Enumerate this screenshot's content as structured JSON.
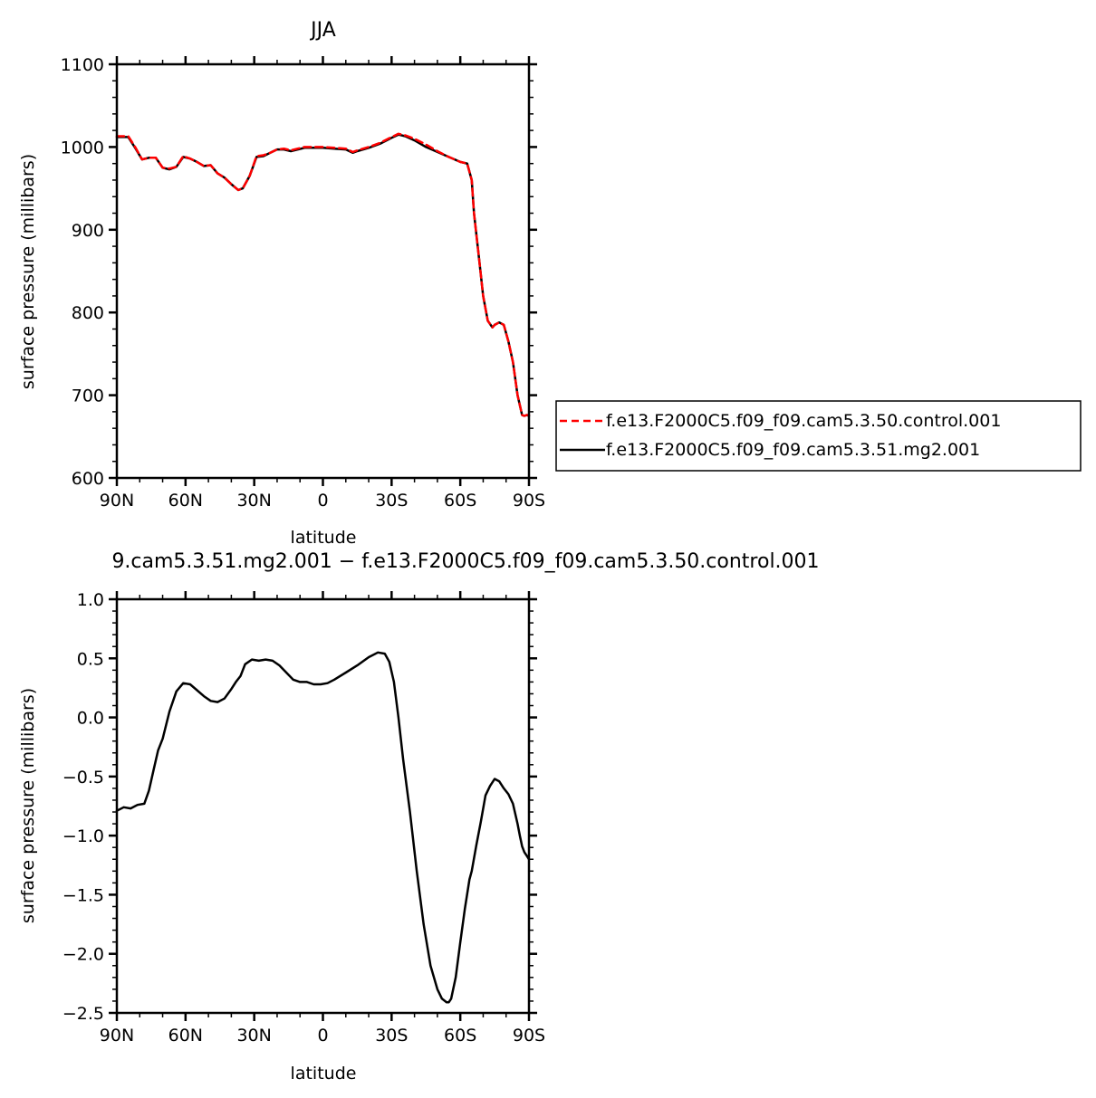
{
  "chart_data": [
    {
      "type": "line",
      "title": "JJA",
      "xlabel": "latitude",
      "ylabel": "surface pressure (millibars)",
      "xlim": [
        90,
        -90
      ],
      "ylim": [
        600,
        1100
      ],
      "xtick_labels": [
        "90N",
        "60N",
        "30N",
        "0",
        "30S",
        "60S",
        "90S"
      ],
      "ytick_labels": [
        "600",
        "700",
        "800",
        "900",
        "1000",
        "1100"
      ],
      "legend_placement": "outside-right",
      "series": [
        {
          "name": "f.e13.F2000C5.f09_f09.cam5.3.50.control.001",
          "color": "#ff0000",
          "dash": "dashed",
          "x": [
            90,
            85,
            82,
            79,
            76,
            73,
            70,
            67,
            64,
            61,
            58,
            55,
            52,
            49,
            46,
            43,
            40,
            37,
            35,
            32,
            29,
            26,
            23,
            20,
            17,
            14,
            11,
            8,
            5,
            2,
            0,
            -5,
            -10,
            -13,
            -15,
            -20,
            -25,
            -30,
            -33,
            -36,
            -40,
            -45,
            -50,
            -55,
            -60,
            -63,
            -65,
            -66,
            -68,
            -70,
            -72,
            -74,
            -75,
            -77,
            -79,
            -81,
            -83,
            -85,
            -87,
            -88,
            -89,
            -90
          ],
          "y": [
            1013,
            1013,
            1000,
            985,
            987,
            987,
            975,
            974,
            976,
            989,
            986,
            982,
            977,
            978,
            968,
            963,
            955,
            948,
            950,
            965,
            989,
            990,
            993,
            997,
            998,
            996,
            998,
            1000,
            1000,
            1000,
            1000,
            999,
            998,
            994,
            996,
            1000,
            1005,
            1012,
            1016,
            1014,
            1010,
            1003,
            995,
            988,
            982,
            980,
            960,
            920,
            870,
            820,
            790,
            782,
            785,
            788,
            785,
            765,
            740,
            700,
            676,
            675,
            676,
            676
          ]
        },
        {
          "name": "f.e13.F2000C5.f09_f09.cam5.3.51.mg2.001",
          "color": "#000000",
          "dash": "solid",
          "x": [
            90,
            85,
            82,
            79,
            76,
            73,
            70,
            67,
            64,
            61,
            58,
            55,
            52,
            49,
            46,
            43,
            40,
            37,
            35,
            32,
            29,
            26,
            23,
            20,
            17,
            14,
            11,
            8,
            5,
            2,
            0,
            -5,
            -10,
            -13,
            -15,
            -20,
            -25,
            -30,
            -33,
            -36,
            -40,
            -45,
            -50,
            -55,
            -60,
            -63,
            -65,
            -66,
            -68,
            -70,
            -72,
            -74,
            -75,
            -77,
            -79,
            -81,
            -83,
            -85,
            -87,
            -88,
            -89,
            -90
          ],
          "y": [
            1012,
            1012,
            999,
            985,
            987,
            987,
            975,
            973,
            976,
            988,
            986,
            982,
            977,
            978,
            968,
            963,
            955,
            948,
            950,
            965,
            988,
            989,
            993,
            997,
            997,
            995,
            997,
            999,
            999,
            999,
            999,
            998,
            997,
            993,
            995,
            999,
            1004,
            1011,
            1015,
            1013,
            1008,
            1000,
            994,
            988,
            982,
            980,
            960,
            920,
            870,
            820,
            790,
            782,
            785,
            788,
            785,
            765,
            740,
            700,
            676,
            675,
            676,
            675
          ]
        }
      ]
    },
    {
      "type": "line",
      "title": "9.cam5.3.51.mg2.001 − f.e13.F2000C5.f09_f09.cam5.3.50.control.001",
      "xlabel": "latitude",
      "ylabel": "surface pressure (millibars)",
      "xlim": [
        90,
        -90
      ],
      "ylim": [
        -2.5,
        1.0
      ],
      "xtick_labels": [
        "90N",
        "60N",
        "30N",
        "0",
        "30S",
        "60S",
        "90S"
      ],
      "ytick_labels": [
        "−2.5",
        "−2.0",
        "−1.5",
        "−1.0",
        "−0.5",
        "0.0",
        "0.5",
        "1.0"
      ],
      "series": [
        {
          "color": "#000000",
          "x": [
            90,
            87,
            84,
            81,
            78,
            76,
            74,
            72,
            70,
            67,
            64,
            61,
            58,
            55,
            52,
            49,
            46,
            43,
            40,
            38,
            36,
            34,
            31,
            28,
            25,
            22,
            19,
            16,
            13,
            10,
            7,
            4,
            1,
            -2,
            -5,
            -10,
            -15,
            -20,
            -24,
            -27,
            -29,
            -31,
            -33,
            -35,
            -38,
            -41,
            -44,
            -47,
            -50,
            -52,
            -54,
            -55,
            -56,
            -58,
            -60,
            -62,
            -64,
            -65,
            -67,
            -69,
            -71,
            -73,
            -75,
            -77,
            -79,
            -81,
            -83,
            -85,
            -86,
            -87,
            -88,
            -89,
            -90
          ],
          "y": [
            -0.79,
            -0.76,
            -0.77,
            -0.74,
            -0.73,
            -0.62,
            -0.45,
            -0.28,
            -0.18,
            0.05,
            0.22,
            0.29,
            0.28,
            0.23,
            0.18,
            0.14,
            0.13,
            0.16,
            0.24,
            0.3,
            0.35,
            0.45,
            0.49,
            0.48,
            0.49,
            0.48,
            0.44,
            0.38,
            0.32,
            0.3,
            0.3,
            0.28,
            0.28,
            0.29,
            0.32,
            0.38,
            0.44,
            0.51,
            0.55,
            0.54,
            0.47,
            0.3,
            0.0,
            -0.35,
            -0.8,
            -1.3,
            -1.75,
            -2.1,
            -2.3,
            -2.38,
            -2.41,
            -2.41,
            -2.38,
            -2.2,
            -1.9,
            -1.62,
            -1.37,
            -1.3,
            -1.08,
            -0.88,
            -0.66,
            -0.58,
            -0.52,
            -0.54,
            -0.6,
            -0.65,
            -0.73,
            -0.9,
            -1.0,
            -1.09,
            -1.14,
            -1.17,
            -1.2
          ]
        }
      ]
    }
  ]
}
